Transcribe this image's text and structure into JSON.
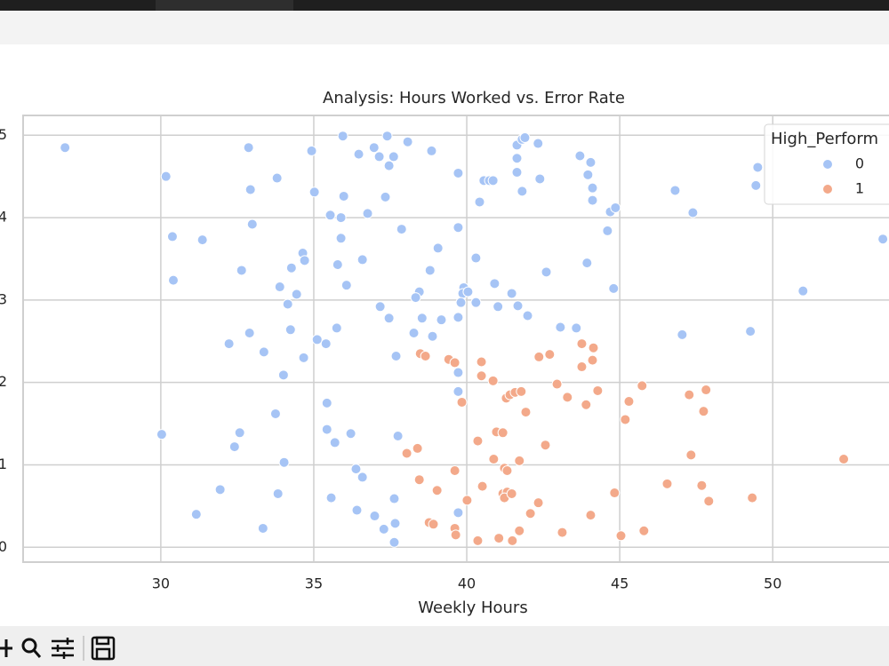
{
  "chart_data": {
    "type": "scatter",
    "title": "Analysis: Hours Worked vs. Error Rate",
    "x_label": "Weekly Hours",
    "legend_title": "High_Perform",
    "legend_position": "upper right",
    "grid": true,
    "xlim": [
      25.5,
      53.8
    ],
    "ylim": [
      -0.18,
      5.24
    ],
    "xticks": [
      30,
      35,
      40,
      45,
      50
    ],
    "yticks": [
      0,
      1,
      2,
      3,
      4,
      5
    ],
    "series": [
      {
        "name": "0",
        "color": "#a6c4f5",
        "x": [
          26.87,
          30.17,
          30.38,
          30.41,
          31.36,
          32.87,
          32.93,
          32.99,
          32.64,
          33.8,
          32.23,
          32.9,
          33.37,
          33.89,
          34.27,
          34.15,
          34.44,
          34.64,
          34.7,
          34.24,
          34.67,
          34.01,
          34.93,
          35.02,
          35.95,
          35.98,
          35.54,
          35.89,
          35.89,
          35.78,
          36.07,
          36.47,
          36.97,
          37.14,
          37.4,
          37.46,
          37.61,
          38.07,
          37.34,
          36.76,
          37.87,
          36.59,
          37.17,
          37.46,
          38.85,
          39.06,
          38.8,
          38.45,
          38.33,
          38.54,
          39.17,
          38.88,
          38.27,
          37.69,
          39.72,
          39.72,
          39.9,
          39.87,
          40.04,
          39.81,
          39.72,
          39.72,
          39.72,
          40.3,
          40.3,
          40.91,
          41.02,
          40.42,
          40.56,
          40.74,
          40.86,
          41.47,
          41.67,
          41.99,
          41.64,
          41.81,
          41.9,
          42.33,
          41.64,
          41.64,
          41.81,
          42.39,
          42.6,
          43.06,
          43.58,
          43.7,
          44.05,
          43.96,
          44.11,
          44.11,
          43.93,
          44.6,
          44.69,
          44.86,
          44.8,
          46.81,
          47.39,
          47.04,
          49.51,
          49.45,
          49.27,
          50.99,
          53.6,
          30.03,
          32.58,
          32.41,
          33.75,
          34.03,
          31.94,
          31.16,
          33.34,
          33.83,
          35.43,
          35.43,
          35.69,
          36.21,
          36.38,
          36.59,
          35.57,
          36.41,
          36.99,
          37.29,
          37.66,
          37.63,
          37.63,
          37.75,
          39.72,
          35.11,
          35.4,
          35.75
        ],
        "values": [
          4.85,
          4.5,
          3.77,
          3.24,
          3.73,
          4.85,
          4.34,
          3.92,
          3.36,
          4.48,
          2.47,
          2.6,
          2.37,
          3.16,
          3.39,
          2.95,
          3.07,
          3.57,
          3.48,
          2.64,
          2.3,
          2.09,
          4.81,
          4.31,
          4.99,
          4.26,
          4.03,
          4.0,
          3.75,
          3.43,
          3.18,
          4.77,
          4.85,
          4.74,
          4.99,
          4.63,
          4.74,
          4.92,
          4.25,
          4.05,
          3.86,
          3.49,
          2.92,
          2.78,
          4.81,
          3.63,
          3.36,
          3.1,
          3.03,
          2.78,
          2.76,
          2.56,
          2.6,
          2.32,
          4.54,
          3.88,
          3.15,
          3.08,
          3.1,
          2.97,
          2.79,
          2.12,
          1.89,
          3.51,
          2.97,
          3.2,
          2.92,
          4.19,
          4.45,
          4.45,
          4.45,
          3.08,
          2.93,
          2.81,
          4.88,
          4.95,
          4.97,
          4.9,
          4.72,
          4.55,
          4.32,
          4.47,
          3.34,
          2.67,
          2.66,
          4.75,
          4.67,
          4.52,
          4.36,
          4.21,
          3.45,
          3.84,
          4.07,
          4.12,
          3.14,
          4.33,
          4.06,
          2.58,
          4.61,
          4.39,
          2.62,
          3.11,
          3.74,
          1.37,
          1.39,
          1.22,
          1.62,
          1.03,
          0.7,
          0.4,
          0.23,
          0.65,
          1.75,
          1.43,
          1.27,
          1.38,
          0.95,
          0.85,
          0.6,
          0.45,
          0.38,
          0.22,
          0.29,
          0.06,
          0.59,
          1.35,
          0.42,
          2.52,
          2.47,
          2.66
        ]
      },
      {
        "name": "1",
        "color": "#f3a98a",
        "x": [
          38.48,
          38.65,
          39.41,
          39.61,
          40.48,
          40.86,
          40.48,
          39.84,
          40.97,
          41.18,
          41.29,
          41.41,
          41.58,
          41.78,
          41.93,
          42.36,
          42.71,
          42.95,
          43.29,
          43.76,
          44.14,
          44.11,
          43.76,
          43.9,
          44.28,
          45.3,
          45.73,
          45.18,
          47.27,
          47.82,
          47.74,
          47.33,
          40.36,
          40.88,
          41.23,
          41.32,
          41.72,
          42.57,
          38.39,
          38.04,
          39.61,
          38.45,
          39.03,
          40.51,
          40.01,
          41.18,
          41.32,
          41.23,
          41.47,
          42.08,
          42.34,
          44.05,
          44.83,
          46.55,
          47.68,
          47.91,
          49.33,
          52.32,
          38.77,
          38.91,
          39.61,
          39.64,
          40.36,
          41.05,
          41.49,
          41.72,
          43.12,
          45.04,
          45.79
        ],
        "values": [
          2.35,
          2.32,
          2.28,
          2.24,
          2.25,
          2.02,
          2.08,
          1.76,
          1.4,
          1.39,
          1.81,
          1.85,
          1.88,
          1.89,
          1.64,
          2.31,
          2.34,
          1.98,
          1.82,
          2.47,
          2.42,
          2.27,
          2.19,
          1.73,
          1.9,
          1.77,
          1.96,
          1.55,
          1.85,
          1.91,
          1.65,
          1.12,
          1.29,
          1.07,
          0.96,
          0.93,
          1.05,
          1.24,
          1.2,
          1.14,
          0.93,
          0.82,
          0.69,
          0.74,
          0.57,
          0.65,
          0.67,
          0.6,
          0.65,
          0.41,
          0.54,
          0.39,
          0.66,
          0.77,
          0.75,
          0.56,
          0.6,
          1.07,
          0.3,
          0.28,
          0.23,
          0.15,
          0.08,
          0.11,
          0.08,
          0.2,
          0.18,
          0.14,
          0.2
        ]
      }
    ]
  }
}
